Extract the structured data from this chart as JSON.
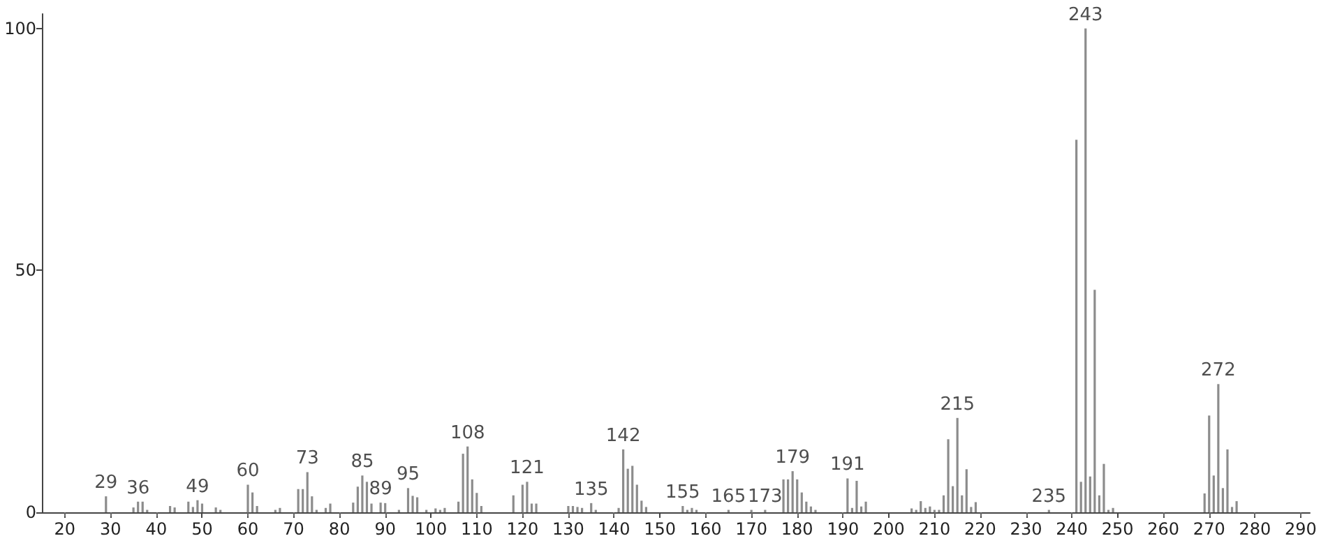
{
  "chart_data": {
    "type": "bar",
    "color": "#8c8c8c",
    "x": [
      29,
      35,
      36,
      37,
      38,
      43,
      44,
      47,
      48,
      49,
      50,
      53,
      54,
      60,
      61,
      62,
      66,
      67,
      71,
      72,
      73,
      74,
      75,
      77,
      78,
      83,
      84,
      85,
      86,
      87,
      89,
      90,
      93,
      95,
      96,
      97,
      99,
      101,
      102,
      103,
      106,
      107,
      108,
      109,
      110,
      111,
      118,
      120,
      121,
      122,
      123,
      130,
      131,
      132,
      133,
      135,
      136,
      141,
      142,
      143,
      144,
      145,
      146,
      147,
      155,
      156,
      157,
      158,
      165,
      170,
      173,
      177,
      178,
      179,
      180,
      181,
      182,
      183,
      184,
      191,
      192,
      193,
      194,
      195,
      205,
      206,
      207,
      208,
      209,
      210,
      211,
      212,
      213,
      214,
      215,
      216,
      217,
      218,
      219,
      235,
      241,
      242,
      243,
      244,
      245,
      246,
      247,
      248,
      249,
      269,
      270,
      271,
      272,
      273,
      274,
      275,
      276
    ],
    "values": [
      3.3,
      1,
      2.2,
      2.2,
      0.5,
      1.3,
      1,
      2.2,
      1.1,
      2.5,
      1.8,
      1,
      0.5,
      5.7,
      4.1,
      1.3,
      0.5,
      0.9,
      4.8,
      4.8,
      8.3,
      3.3,
      0.5,
      0.9,
      1.8,
      2,
      5.3,
      7.6,
      6.3,
      1.8,
      2,
      1.9,
      0.5,
      5,
      3.4,
      3.1,
      0.5,
      0.8,
      0.5,
      0.9,
      2.2,
      12.1,
      13.6,
      6.8,
      4,
      1.3,
      3.5,
      5.7,
      6.3,
      1.8,
      1.8,
      1.3,
      1.3,
      1.1,
      0.9,
      1.9,
      0.5,
      0.9,
      13,
      9,
      9.6,
      5.7,
      2.4,
      1.1,
      1.3,
      0.5,
      0.9,
      0.5,
      0.5,
      0.5,
      0.5,
      6.8,
      6.8,
      8.5,
      6.8,
      4.1,
      2.2,
      1.2,
      0.5,
      7,
      0.9,
      6.5,
      1.2,
      2.2,
      0.8,
      0.5,
      2.3,
      0.9,
      1.2,
      0.5,
      0.5,
      3.5,
      15.1,
      5.4,
      19.5,
      3.5,
      8.9,
      1.1,
      2.1,
      0.5,
      77,
      6.3,
      100,
      7.4,
      46,
      3.5,
      10,
      0.5,
      0.9,
      3.9,
      20,
      7.6,
      26.5,
      5,
      13,
      1.1,
      2.3
    ],
    "xlim": [
      15,
      292
    ],
    "xticks": [
      20,
      30,
      40,
      50,
      60,
      70,
      80,
      90,
      100,
      110,
      120,
      130,
      140,
      150,
      160,
      170,
      180,
      190,
      200,
      210,
      220,
      230,
      240,
      250,
      260,
      270,
      280,
      290
    ],
    "ylim": [
      0,
      103
    ],
    "yticks": [
      0,
      50,
      100
    ],
    "grid": false,
    "annotations": [
      {
        "text": "29",
        "x": 29,
        "y": 3.3
      },
      {
        "text": "36",
        "x": 36,
        "y": 2.2
      },
      {
        "text": "49",
        "x": 49,
        "y": 2.5
      },
      {
        "text": "60",
        "x": 60,
        "y": 5.7
      },
      {
        "text": "73",
        "x": 73,
        "y": 8.3
      },
      {
        "text": "85",
        "x": 85,
        "y": 7.6
      },
      {
        "text": "89",
        "x": 89,
        "y": 2
      },
      {
        "text": "95",
        "x": 95,
        "y": 5
      },
      {
        "text": "108",
        "x": 108,
        "y": 13.6
      },
      {
        "text": "121",
        "x": 121,
        "y": 6.3
      },
      {
        "text": "135",
        "x": 135,
        "y": 1.9
      },
      {
        "text": "142",
        "x": 142,
        "y": 13
      },
      {
        "text": "155",
        "x": 155,
        "y": 1.3
      },
      {
        "text": "165",
        "x": 165,
        "y": 0.5
      },
      {
        "text": "173",
        "x": 173,
        "y": 0.5
      },
      {
        "text": "179",
        "x": 179,
        "y": 8.5
      },
      {
        "text": "191",
        "x": 191,
        "y": 7
      },
      {
        "text": "215",
        "x": 215,
        "y": 19.5
      },
      {
        "text": "235",
        "x": 235,
        "y": 0.5
      },
      {
        "text": "243",
        "x": 243,
        "y": 100
      },
      {
        "text": "272",
        "x": 272,
        "y": 26.5
      }
    ]
  }
}
